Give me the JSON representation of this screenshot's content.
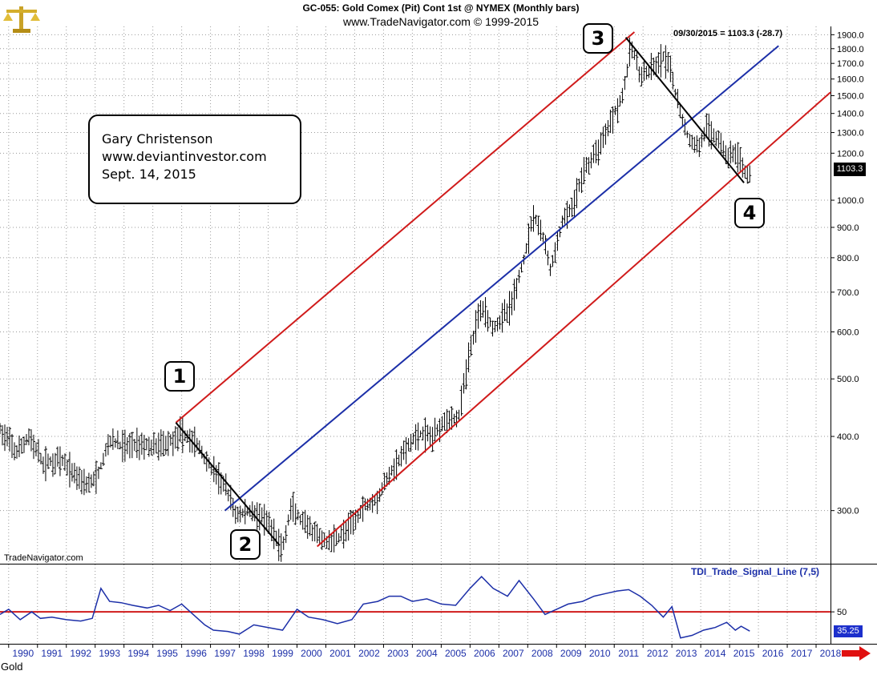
{
  "chart_data": [
    {
      "type": "ohlc",
      "title": "GC-055:  Gold Comex (Pit) Cont 1st @ NYMEX  (Monthly bars)",
      "subtitle": "www.TradeNavigator.com © 1999-2015",
      "scale": "log",
      "ylim": [
        255,
        1920
      ],
      "y_ticks": [
        "1900.0",
        "1800.0",
        "1700.0",
        "1600.0",
        "1500.0",
        "1400.0",
        "1300.0",
        "1200.0",
        "1000.0",
        "900.0",
        "800.0",
        "700.0",
        "600.0",
        "500.0",
        "400.0",
        "300.0"
      ],
      "x_ticks": [
        "1990",
        "1991",
        "1992",
        "1993",
        "1994",
        "1995",
        "1996",
        "1997",
        "1998",
        "1999",
        "2000",
        "2001",
        "2002",
        "2003",
        "2004",
        "2005",
        "2006",
        "2007",
        "2008",
        "2009",
        "2010",
        "2011",
        "2012",
        "2013",
        "2014",
        "2015",
        "2016",
        "2017",
        "2018"
      ],
      "last_price_label": "1103.3",
      "last_readout": "09/30/2015 = 1103.3 (-28.7)",
      "price_keypoints": [
        [
          1989.7,
          410
        ],
        [
          1990.3,
          375
        ],
        [
          1990.7,
          400
        ],
        [
          1991.2,
          360
        ],
        [
          1991.8,
          365
        ],
        [
          1992.3,
          345
        ],
        [
          1992.8,
          332
        ],
        [
          1993.1,
          345
        ],
        [
          1993.5,
          395
        ],
        [
          1994.0,
          385
        ],
        [
          1994.5,
          390
        ],
        [
          1995.0,
          384
        ],
        [
          1995.5,
          390
        ],
        [
          1996.0,
          405
        ],
        [
          1996.5,
          390
        ],
        [
          1997.0,
          355
        ],
        [
          1997.5,
          330
        ],
        [
          1997.9,
          295
        ],
        [
          1998.5,
          300
        ],
        [
          1999.0,
          285
        ],
        [
          1999.5,
          258
        ],
        [
          1999.8,
          305
        ],
        [
          2000.2,
          285
        ],
        [
          2000.7,
          272
        ],
        [
          2001.0,
          265
        ],
        [
          2001.4,
          270
        ],
        [
          2001.8,
          280
        ],
        [
          2002.3,
          305
        ],
        [
          2002.8,
          315
        ],
        [
          2003.2,
          345
        ],
        [
          2003.7,
          375
        ],
        [
          2004.2,
          405
        ],
        [
          2004.7,
          400
        ],
        [
          2005.1,
          428
        ],
        [
          2005.6,
          430
        ],
        [
          2006.0,
          560
        ],
        [
          2006.4,
          670
        ],
        [
          2006.8,
          610
        ],
        [
          2007.4,
          660
        ],
        [
          2007.8,
          770
        ],
        [
          2008.2,
          950
        ],
        [
          2008.5,
          880
        ],
        [
          2008.8,
          760
        ],
        [
          2009.2,
          920
        ],
        [
          2009.6,
          980
        ],
        [
          2009.9,
          1110
        ],
        [
          2010.4,
          1210
        ],
        [
          2010.9,
          1370
        ],
        [
          2011.3,
          1510
        ],
        [
          2011.6,
          1820
        ],
        [
          2011.9,
          1620
        ],
        [
          2012.3,
          1650
        ],
        [
          2012.7,
          1740
        ],
        [
          2012.9,
          1680
        ],
        [
          2013.3,
          1400
        ],
        [
          2013.6,
          1260
        ],
        [
          2013.9,
          1230
        ],
        [
          2014.2,
          1320
        ],
        [
          2014.6,
          1270
        ],
        [
          2014.9,
          1190
        ],
        [
          2015.2,
          1200
        ],
        [
          2015.5,
          1130
        ],
        [
          2015.7,
          1103.3
        ]
      ],
      "trend_lines": [
        {
          "color": "#d01b1b",
          "from": [
            1995.8,
            422
          ],
          "to": [
            2011.7,
            1920
          ]
        },
        {
          "color": "#d01b1b",
          "from": [
            2000.7,
            261
          ],
          "to": [
            2018.5,
            1520
          ]
        },
        {
          "color": "#1c2fa8",
          "from": [
            1997.5,
            300
          ],
          "to": [
            2016.7,
            1820
          ]
        },
        {
          "color": "#000000",
          "from": [
            1995.8,
            422
          ],
          "to": [
            1999.4,
            262
          ]
        },
        {
          "color": "#000000",
          "from": [
            2011.4,
            1880
          ],
          "to": [
            2015.5,
            1070
          ]
        }
      ],
      "markers": [
        "1",
        "2",
        "3",
        "4"
      ]
    },
    {
      "type": "line",
      "title": "TDI_Trade_Signal_Line (7,5)",
      "reference_level": 50,
      "y_tick": "50",
      "last_value_label": "35.25",
      "reference_color": "#d01b1b",
      "line_color": "#1c2fa8",
      "x": [
        1989.7,
        1990.0,
        1990.4,
        1990.8,
        1991.1,
        1991.5,
        1992.0,
        1992.5,
        1992.9,
        1993.2,
        1993.5,
        1993.9,
        1994.3,
        1994.8,
        1995.2,
        1995.6,
        1996.0,
        1996.4,
        1996.8,
        1997.1,
        1997.6,
        1998.0,
        1998.5,
        1999.0,
        1999.5,
        2000.0,
        2000.4,
        2000.9,
        2001.4,
        2001.9,
        2002.3,
        2002.8,
        2003.2,
        2003.6,
        2004.0,
        2004.5,
        2005.0,
        2005.5,
        2006.0,
        2006.4,
        2006.8,
        2007.3,
        2007.7,
        2008.2,
        2008.6,
        2009.0,
        2009.4,
        2009.9,
        2010.3,
        2010.7,
        2011.1,
        2011.5,
        2011.9,
        2012.3,
        2012.7,
        2013.0,
        2013.3,
        2013.7,
        2014.1,
        2014.5,
        2014.9,
        2015.2,
        2015.4,
        2015.7
      ],
      "values": [
        48,
        52,
        44,
        50,
        45,
        46,
        44,
        43,
        45,
        68,
        58,
        57,
        55,
        53,
        55,
        51,
        56,
        48,
        40,
        36,
        35,
        33,
        40,
        38,
        36,
        52,
        46,
        44,
        41,
        44,
        56,
        58,
        62,
        62,
        58,
        60,
        56,
        55,
        68,
        77,
        68,
        62,
        74,
        60,
        48,
        52,
        56,
        58,
        62,
        64,
        66,
        67,
        62,
        55,
        46,
        54,
        30,
        32,
        36,
        38,
        42,
        36,
        39,
        35.25
      ]
    }
  ],
  "note": {
    "line1": "Gary Christenson",
    "line2": "www.deviantinvestor.com",
    "line3": "Sept. 14, 2015"
  },
  "watermark": "TradeNavigator.com",
  "footer_label": "Gold",
  "icons": {
    "logo": "gold-scale-logo-icon",
    "arrow": "red-arrow-right-icon"
  }
}
